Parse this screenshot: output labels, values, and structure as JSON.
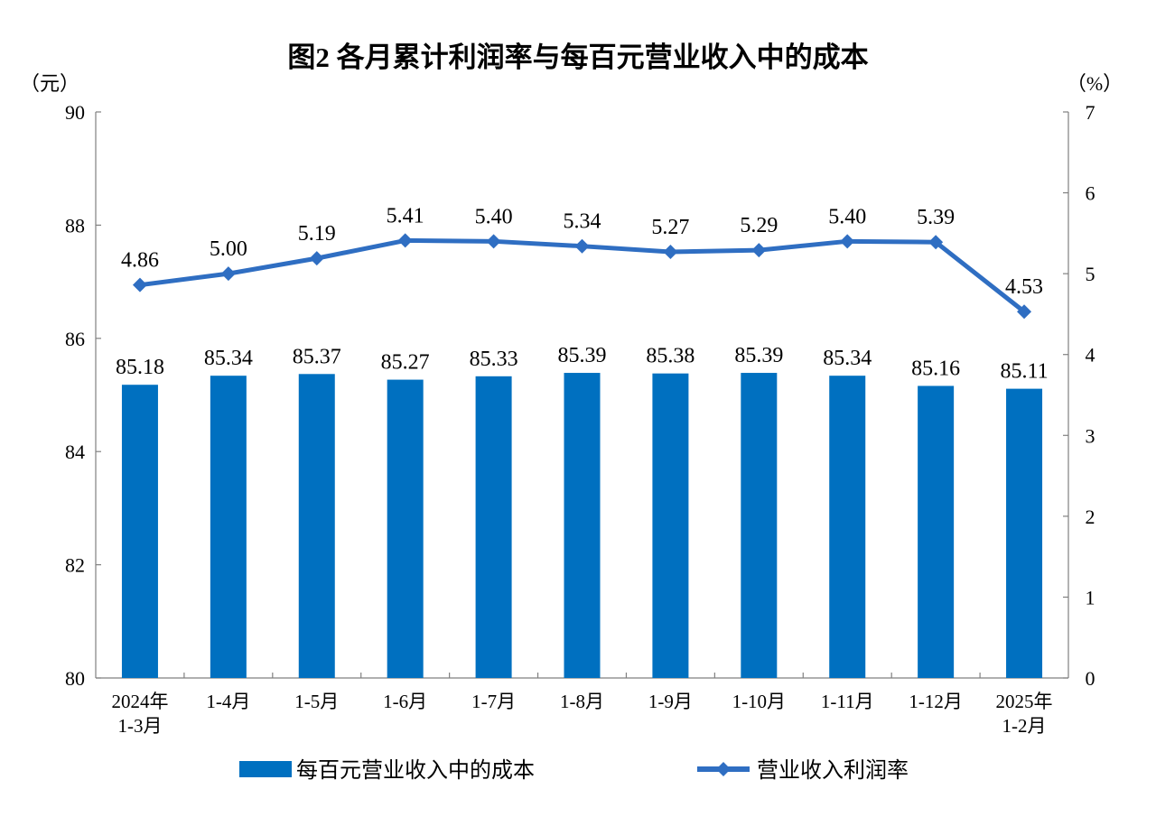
{
  "chart_data": {
    "type": "bar+line",
    "title": "图2  各月累计利润率与每百元营业收入中的成本",
    "left_unit": "（元）",
    "right_unit": "（%）",
    "categories": [
      "2024年\n1-3月",
      "1-4月",
      "1-5月",
      "1-6月",
      "1-7月",
      "1-8月",
      "1-9月",
      "1-10月",
      "1-11月",
      "1-12月",
      "2025年\n1-2月"
    ],
    "left_axis": {
      "ylim": [
        80,
        90
      ],
      "ticks": [
        "80",
        "82",
        "84",
        "86",
        "88",
        "90"
      ]
    },
    "right_axis": {
      "ylim": [
        0,
        7
      ],
      "ticks": [
        "0",
        "1",
        "2",
        "3",
        "4",
        "5",
        "6",
        "7"
      ]
    },
    "series": [
      {
        "name": "每百元营业收入中的成本",
        "type": "bar",
        "axis": "left",
        "color": "#0070C0",
        "values": [
          85.18,
          85.34,
          85.37,
          85.27,
          85.33,
          85.39,
          85.38,
          85.39,
          85.34,
          85.16,
          85.11
        ],
        "labels": [
          "85.18",
          "85.34",
          "85.37",
          "85.27",
          "85.33",
          "85.39",
          "85.38",
          "85.39",
          "85.34",
          "85.16",
          "85.11"
        ]
      },
      {
        "name": "营业收入利润率",
        "type": "line",
        "axis": "right",
        "marker": "diamond",
        "color": "#2F6EC2",
        "values": [
          4.86,
          5.0,
          5.19,
          5.41,
          5.4,
          5.34,
          5.27,
          5.29,
          5.4,
          5.39,
          4.53
        ],
        "labels": [
          "4.86",
          "5.00",
          "5.19",
          "5.41",
          "5.40",
          "5.34",
          "5.27",
          "5.29",
          "5.40",
          "5.39",
          "4.53"
        ]
      }
    ],
    "grid": false,
    "legend": "bottom"
  }
}
